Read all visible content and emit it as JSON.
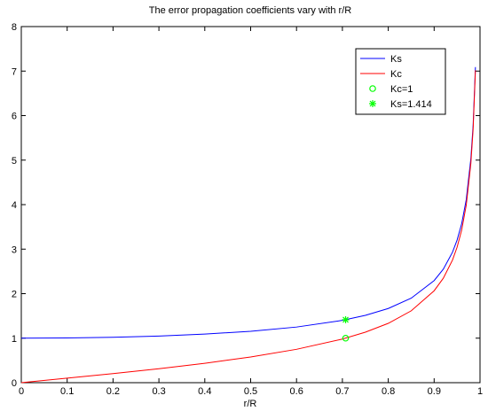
{
  "chart_data": {
    "type": "line",
    "title": "The error propagation coefficients vary with r/R",
    "xlabel": "r/R",
    "ylabel": "",
    "xlim": [
      0,
      1
    ],
    "ylim": [
      0,
      8
    ],
    "xticks": [
      0,
      0.1,
      0.2,
      0.3,
      0.4,
      0.5,
      0.6,
      0.7,
      0.8,
      0.9,
      1
    ],
    "xtick_labels": [
      "0",
      "0.1",
      "0.2",
      "0.3",
      "0.4",
      "0.5",
      "0.6",
      "0.7",
      "0.8",
      "0.9",
      "1"
    ],
    "yticks": [
      0,
      1,
      2,
      3,
      4,
      5,
      6,
      7,
      8
    ],
    "ytick_labels": [
      "0",
      "1",
      "2",
      "3",
      "4",
      "5",
      "6",
      "7",
      "8"
    ],
    "grid": false,
    "legend_position": "top-right",
    "series": [
      {
        "name": "Ks",
        "color": "#0000ff",
        "style": "line",
        "x": [
          0,
          0.1,
          0.2,
          0.3,
          0.4,
          0.5,
          0.6,
          0.7,
          0.75,
          0.8,
          0.85,
          0.9,
          0.92,
          0.94,
          0.95,
          0.96,
          0.97,
          0.98,
          0.985,
          0.99
        ],
        "y": [
          1.0,
          1.005,
          1.021,
          1.048,
          1.091,
          1.155,
          1.25,
          1.4,
          1.512,
          1.667,
          1.898,
          2.294,
          2.551,
          2.931,
          3.203,
          3.571,
          4.113,
          5.025,
          5.783,
          7.089
        ]
      },
      {
        "name": "Kc",
        "color": "#ff0000",
        "style": "line",
        "x": [
          0,
          0.1,
          0.2,
          0.3,
          0.4,
          0.5,
          0.6,
          0.7,
          0.75,
          0.8,
          0.85,
          0.9,
          0.92,
          0.94,
          0.95,
          0.96,
          0.97,
          0.98,
          0.985,
          0.99
        ],
        "y": [
          0.0,
          0.101,
          0.204,
          0.314,
          0.436,
          0.577,
          0.75,
          0.98,
          1.134,
          1.333,
          1.614,
          2.065,
          2.347,
          2.755,
          3.042,
          3.428,
          3.99,
          4.925,
          5.696,
          7.019
        ]
      },
      {
        "name": "Kc=1",
        "color": "#00ff00",
        "style": "marker-circle",
        "x": [
          0.707
        ],
        "y": [
          1.0
        ]
      },
      {
        "name": "Ks=1.414",
        "color": "#00ff00",
        "style": "marker-star",
        "x": [
          0.707
        ],
        "y": [
          1.414
        ]
      }
    ]
  }
}
